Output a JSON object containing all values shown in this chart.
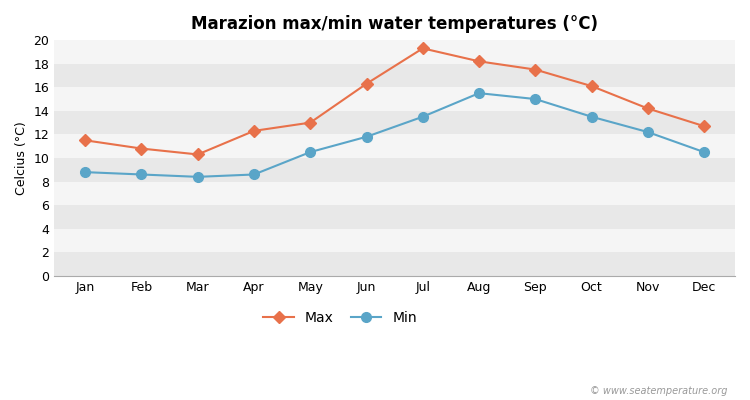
{
  "title": "Marazion max/min water temperatures (°C)",
  "ylabel": "Celcius (°C)",
  "months": [
    "Jan",
    "Feb",
    "Mar",
    "Apr",
    "May",
    "Jun",
    "Jul",
    "Aug",
    "Sep",
    "Oct",
    "Nov",
    "Dec"
  ],
  "max_values": [
    11.5,
    10.8,
    10.3,
    12.3,
    13.0,
    16.3,
    19.3,
    18.2,
    17.5,
    16.1,
    14.2,
    12.7
  ],
  "min_values": [
    8.8,
    8.6,
    8.4,
    8.6,
    10.5,
    11.8,
    13.5,
    15.5,
    15.0,
    13.5,
    12.2,
    10.5
  ],
  "max_color": "#e8714a",
  "min_color": "#5aa5c8",
  "figure_bg_color": "#ffffff",
  "plot_bg_color": "#f0f0f0",
  "stripe_light": "#f5f5f5",
  "stripe_dark": "#e8e8e8",
  "grid_color": "#ffffff",
  "ylim": [
    0,
    20
  ],
  "yticks": [
    0,
    2,
    4,
    6,
    8,
    10,
    12,
    14,
    16,
    18,
    20
  ],
  "legend_labels": [
    "Max",
    "Min"
  ],
  "watermark": "© www.seatemperature.org",
  "title_fontsize": 12,
  "axis_label_fontsize": 9,
  "tick_fontsize": 9,
  "legend_fontsize": 10,
  "max_marker": "D",
  "min_marker": "o",
  "line_width": 1.5,
  "max_marker_size": 6,
  "min_marker_size": 7
}
